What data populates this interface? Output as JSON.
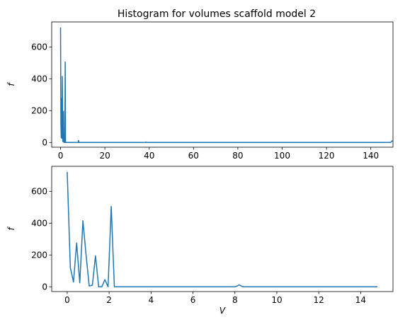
{
  "chart_data": [
    {
      "type": "line",
      "title": "Histogram for volumes scaffold model 2",
      "xlabel": "",
      "ylabel": "f",
      "xlim": [
        -4,
        150
      ],
      "ylim": [
        -30,
        757
      ],
      "x_ticks": [
        0,
        20,
        40,
        60,
        80,
        100,
        120,
        140
      ],
      "y_ticks": [
        0,
        200,
        400,
        600
      ],
      "grid": false,
      "series": [
        {
          "color": "#1f77b4",
          "x": [
            0.0,
            0.15,
            0.3,
            0.45,
            0.6,
            0.75,
            0.9,
            1.05,
            1.2,
            1.35,
            1.5,
            1.65,
            1.8,
            1.95,
            2.1,
            2.25,
            4.0,
            8.0,
            8.15,
            8.3,
            10.0,
            38.4,
            38.6,
            38.8,
            60.0,
            100.0,
            149.0,
            149.8
          ],
          "y": [
            722,
            120,
            30,
            275,
            25,
            415,
            200,
            5,
            10,
            195,
            0,
            0,
            45,
            0,
            505,
            0,
            0,
            0,
            12,
            0,
            0,
            0,
            3,
            0,
            0,
            0,
            0,
            12
          ]
        }
      ]
    },
    {
      "type": "line",
      "title": "",
      "xlabel": "V",
      "ylabel": "f",
      "xlim": [
        -0.74,
        15.54
      ],
      "ylim": [
        -30,
        757
      ],
      "x_ticks": [
        0,
        2,
        4,
        6,
        8,
        10,
        12,
        14
      ],
      "y_ticks": [
        0,
        200,
        400,
        600
      ],
      "grid": false,
      "series": [
        {
          "color": "#1f77b4",
          "x": [
            0.0,
            0.15,
            0.3,
            0.45,
            0.6,
            0.75,
            0.9,
            1.05,
            1.2,
            1.35,
            1.5,
            1.65,
            1.8,
            1.95,
            2.1,
            2.25,
            2.4,
            4.0,
            6.0,
            8.0,
            8.1,
            8.2,
            8.3,
            8.4,
            10.0,
            12.0,
            14.0,
            14.8
          ],
          "y": [
            722,
            120,
            30,
            275,
            25,
            415,
            200,
            5,
            10,
            195,
            0,
            0,
            45,
            0,
            505,
            0,
            0,
            0,
            0,
            0,
            5,
            12,
            5,
            0,
            0,
            0,
            0,
            0
          ]
        }
      ]
    }
  ]
}
